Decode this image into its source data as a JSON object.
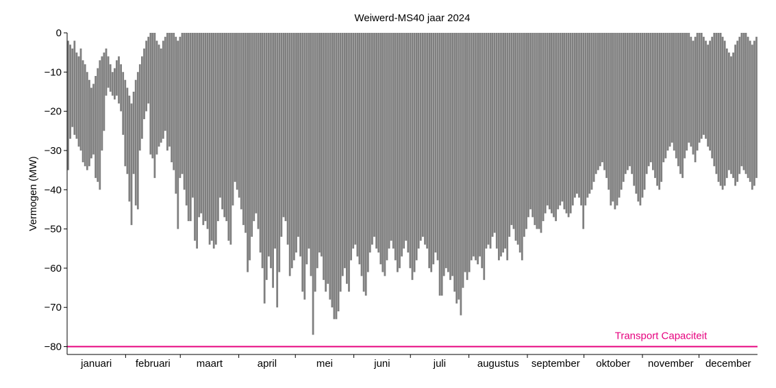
{
  "chart_data": {
    "type": "line",
    "title": "Weiwerd-MS40 jaar 2024",
    "xlabel": "",
    "ylabel": "Vermogen (MW)",
    "ylim": [
      -82,
      0
    ],
    "yticks": [
      0,
      -10,
      -20,
      -30,
      -40,
      -50,
      -60,
      -70,
      -80
    ],
    "ytick_labels": [
      "0",
      "−10",
      "−20",
      "−30",
      "−40",
      "−50",
      "−60",
      "−70",
      "−80"
    ],
    "categories": [
      "januari",
      "februari",
      "maart",
      "april",
      "mei",
      "juni",
      "juli",
      "augustus",
      "september",
      "oktober",
      "november",
      "december"
    ],
    "grid": false,
    "series": [
      {
        "name": "",
        "color": "#7f7f7f",
        "daily_min": [
          -35,
          -27,
          -24,
          -26,
          -27,
          -29,
          -30,
          -33,
          -34,
          -35,
          -34,
          -32,
          -31,
          -37,
          -38,
          -40,
          -30,
          -25,
          -16,
          -14,
          -15,
          -16,
          -17,
          -16,
          -18,
          -20,
          -26,
          -34,
          -36,
          -43,
          -49,
          -36,
          -44,
          -45,
          -30,
          -27,
          -22,
          -20,
          -18,
          -31,
          -32,
          -37,
          -31,
          -29,
          -28,
          -27,
          -25,
          -30,
          -29,
          -33,
          -35,
          -41,
          -50,
          -37,
          -36,
          -40,
          -44,
          -48,
          -48,
          -42,
          -53,
          -55,
          -47,
          -46,
          -49,
          -48,
          -50,
          -54,
          -53,
          -55,
          -54,
          -48,
          -42,
          -45,
          -47,
          -48,
          -53,
          -54,
          -44,
          -38,
          -40,
          -42,
          -45,
          -49,
          -51,
          -61,
          -58,
          -52,
          -48,
          -46,
          -50,
          -56,
          -60,
          -69,
          -63,
          -57,
          -60,
          -65,
          -55,
          -70,
          -61,
          -52,
          -47,
          -48,
          -54,
          -62,
          -60,
          -58,
          -56,
          -52,
          -57,
          -66,
          -68,
          -59,
          -55,
          -62,
          -77,
          -66,
          -60,
          -56,
          -57,
          -63,
          -66,
          -64,
          -68,
          -70,
          -73,
          -73,
          -71,
          -66,
          -62,
          -60,
          -64,
          -66,
          -58,
          -55,
          -54,
          -57,
          -59,
          -62,
          -66,
          -67,
          -61,
          -56,
          -54,
          -52,
          -55,
          -56,
          -59,
          -61,
          -62,
          -58,
          -55,
          -53,
          -55,
          -58,
          -61,
          -60,
          -57,
          -55,
          -53,
          -56,
          -60,
          -63,
          -61,
          -58,
          -55,
          -53,
          -52,
          -54,
          -55,
          -60,
          -61,
          -59,
          -56,
          -58,
          -67,
          -67,
          -62,
          -60,
          -61,
          -63,
          -62,
          -66,
          -69,
          -68,
          -72,
          -65,
          -61,
          -63,
          -61,
          -58,
          -57,
          -58,
          -59,
          -57,
          -60,
          -63,
          -55,
          -54,
          -55,
          -52,
          -51,
          -55,
          -58,
          -57,
          -56,
          -55,
          -58,
          -52,
          -49,
          -50,
          -53,
          -54,
          -56,
          -58,
          -52,
          -50,
          -47,
          -45,
          -47,
          -49,
          -50,
          -50,
          -51,
          -48,
          -46,
          -44,
          -45,
          -46,
          -47,
          -48,
          -45,
          -44,
          -43,
          -45,
          -46,
          -47,
          -46,
          -44,
          -42,
          -41,
          -42,
          -44,
          -50,
          -44,
          -42,
          -41,
          -40,
          -38,
          -36,
          -35,
          -34,
          -33,
          -35,
          -37,
          -40,
          -44,
          -43,
          -45,
          -44,
          -42,
          -40,
          -38,
          -36,
          -35,
          -34,
          -36,
          -39,
          -41,
          -43,
          -44,
          -42,
          -40,
          -36,
          -34,
          -33,
          -35,
          -37,
          -39,
          -40,
          -38,
          -33,
          -32,
          -30,
          -29,
          -28,
          -30,
          -32,
          -34,
          -36,
          -37,
          -32,
          -30,
          -28,
          -29,
          -31,
          -33,
          -30,
          -28,
          -27,
          -26,
          -27,
          -29,
          -30,
          -32,
          -34,
          -36,
          -38,
          -39,
          -40,
          -39,
          -37,
          -35,
          -36,
          -37,
          -39,
          -38,
          -36,
          -34,
          -35,
          -36,
          -37,
          -38,
          -40,
          -39,
          -37
        ],
        "daily_max": [
          -2,
          -3,
          -4,
          -2,
          -5,
          -6,
          -4,
          -7,
          -8,
          -10,
          -12,
          -14,
          -13,
          -11,
          -9,
          -7,
          -6,
          -5,
          -4,
          -6,
          -8,
          -10,
          -9,
          -7,
          -6,
          -8,
          -10,
          -12,
          -14,
          -16,
          -18,
          -15,
          -12,
          -10,
          -8,
          -6,
          -4,
          -2,
          -1,
          0,
          0,
          0,
          -2,
          -3,
          -4,
          -2,
          -1,
          0,
          0,
          0,
          0,
          -1,
          -2,
          -1,
          0,
          0,
          0,
          0,
          0,
          0,
          0,
          0,
          0,
          0,
          0,
          0,
          0,
          0,
          0,
          0,
          0,
          0,
          0,
          0,
          0,
          0,
          0,
          0,
          0,
          0,
          0,
          0,
          0,
          0,
          0,
          0,
          0,
          0,
          0,
          0,
          0,
          0,
          0,
          0,
          0,
          0,
          0,
          0,
          0,
          0,
          0,
          0,
          0,
          0,
          0,
          0,
          0,
          0,
          0,
          0,
          0,
          0,
          0,
          0,
          0,
          0,
          0,
          0,
          0,
          0,
          0,
          0,
          0,
          0,
          0,
          0,
          0,
          0,
          0,
          0,
          0,
          0,
          0,
          0,
          0,
          0,
          0,
          0,
          0,
          0,
          0,
          0,
          0,
          0,
          0,
          0,
          0,
          0,
          0,
          0,
          0,
          0,
          0,
          0,
          0,
          0,
          0,
          0,
          0,
          0,
          0,
          0,
          0,
          0,
          0,
          0,
          0,
          0,
          0,
          0,
          0,
          0,
          0,
          0,
          0,
          0,
          0,
          0,
          0,
          0,
          0,
          0,
          0,
          0,
          0,
          0,
          0,
          0,
          0,
          0,
          0,
          0,
          0,
          0,
          0,
          0,
          0,
          0,
          0,
          0,
          0,
          0,
          0,
          0,
          0,
          0,
          0,
          0,
          0,
          0,
          0,
          0,
          0,
          0,
          0,
          0,
          0,
          0,
          0,
          0,
          0,
          0,
          0,
          0,
          0,
          0,
          0,
          0,
          0,
          0,
          0,
          0,
          0,
          0,
          0,
          0,
          0,
          0,
          0,
          0,
          0,
          0,
          0,
          0,
          0,
          0,
          0,
          0,
          0,
          0,
          0,
          0,
          0,
          0,
          0,
          0,
          0,
          0,
          0,
          0,
          0,
          0,
          0,
          0,
          0,
          0,
          0,
          0,
          0,
          0,
          0,
          0,
          0,
          0,
          0,
          0,
          0,
          0,
          0,
          0,
          0,
          0,
          0,
          0,
          0,
          0,
          0,
          0,
          0,
          0,
          0,
          0,
          0,
          0,
          0,
          -1,
          -2,
          -1,
          0,
          0,
          0,
          -1,
          -2,
          -3,
          -2,
          -1,
          0,
          0,
          0,
          0,
          -1,
          -2,
          -4,
          -5,
          -6,
          -5,
          -3,
          -2,
          -1,
          0,
          0,
          0,
          -1,
          -2,
          -3,
          -2,
          -1,
          0,
          0,
          0,
          0,
          0
        ]
      }
    ],
    "reference_line": {
      "label": "Transport Capaciteit",
      "y": -80,
      "color": "#e6007e"
    }
  }
}
